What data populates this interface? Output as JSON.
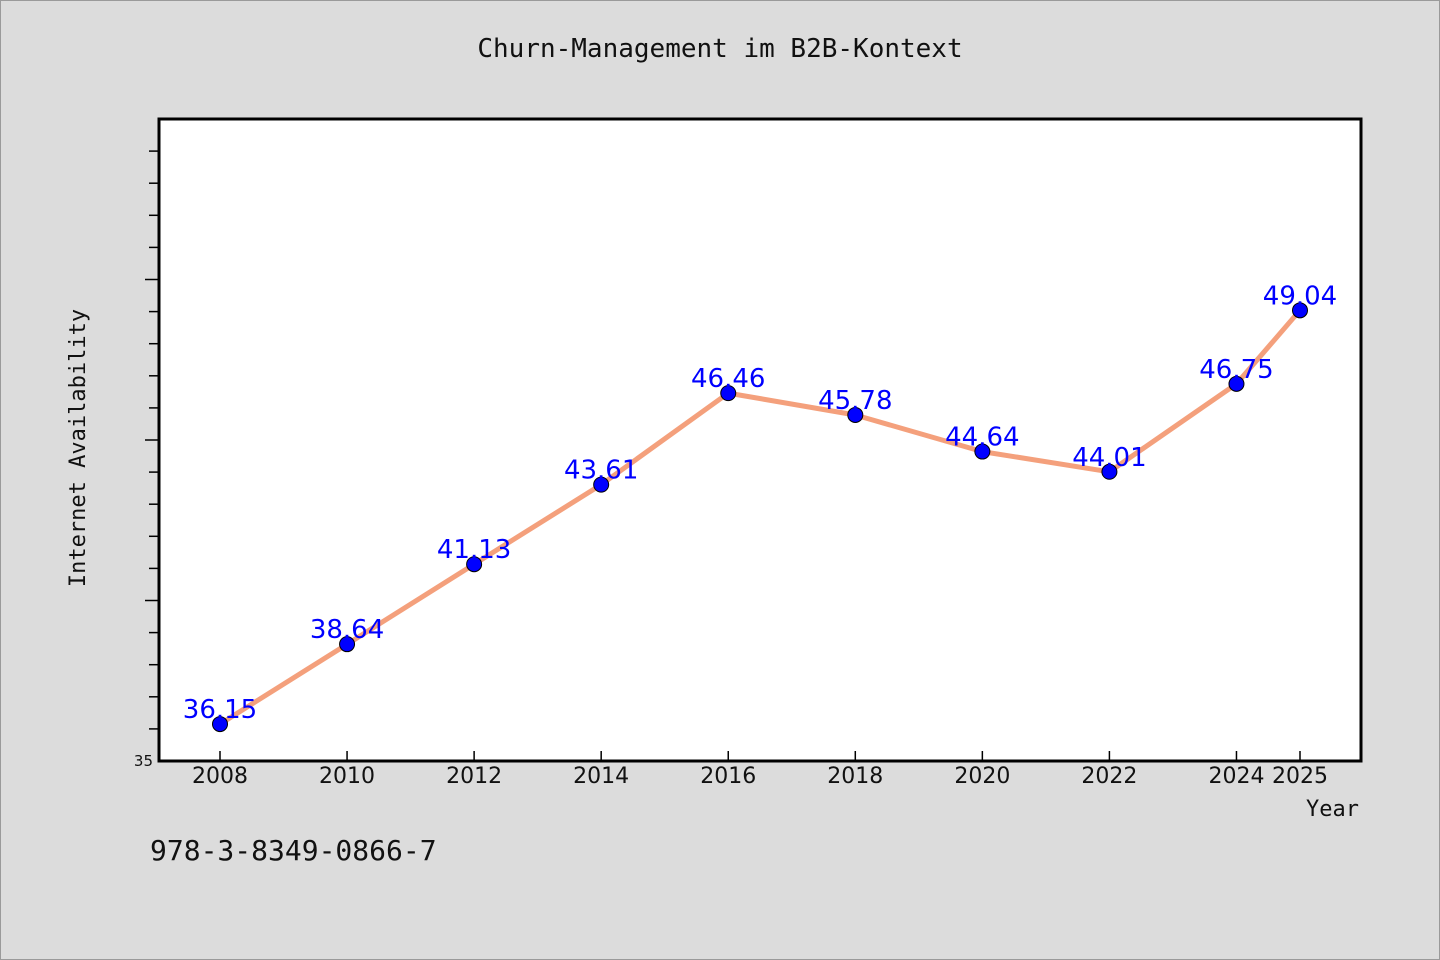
{
  "chart_data": {
    "type": "line",
    "title": "Churn-Management im B2B-Kontext",
    "xlabel": "Year",
    "ylabel": "Internet Availability",
    "x": [
      2008,
      2010,
      2012,
      2014,
      2016,
      2018,
      2020,
      2022,
      2024,
      2025
    ],
    "categories": [
      "2008",
      "2010",
      "2012",
      "2014",
      "2016",
      "2018",
      "2020",
      "2022",
      "2024",
      "2025"
    ],
    "series": [
      {
        "values": [
          36.15,
          38.64,
          41.13,
          43.61,
          46.46,
          45.78,
          44.64,
          44.01,
          46.75,
          49.04
        ],
        "labels": [
          "36.15",
          "38.64",
          "41.13",
          "43.61",
          "46.46",
          "45.78",
          "44.64",
          "44.01",
          "46.75",
          "49.04"
        ]
      }
    ],
    "ylim": [
      35,
      55
    ],
    "y_tick_labels": [
      "35"
    ],
    "grid": false,
    "line_color": "#f4a07c",
    "marker_color": "#0000ff",
    "label_color": "#0000ff"
  },
  "footer": {
    "code": "978-3-8349-0866-7"
  }
}
